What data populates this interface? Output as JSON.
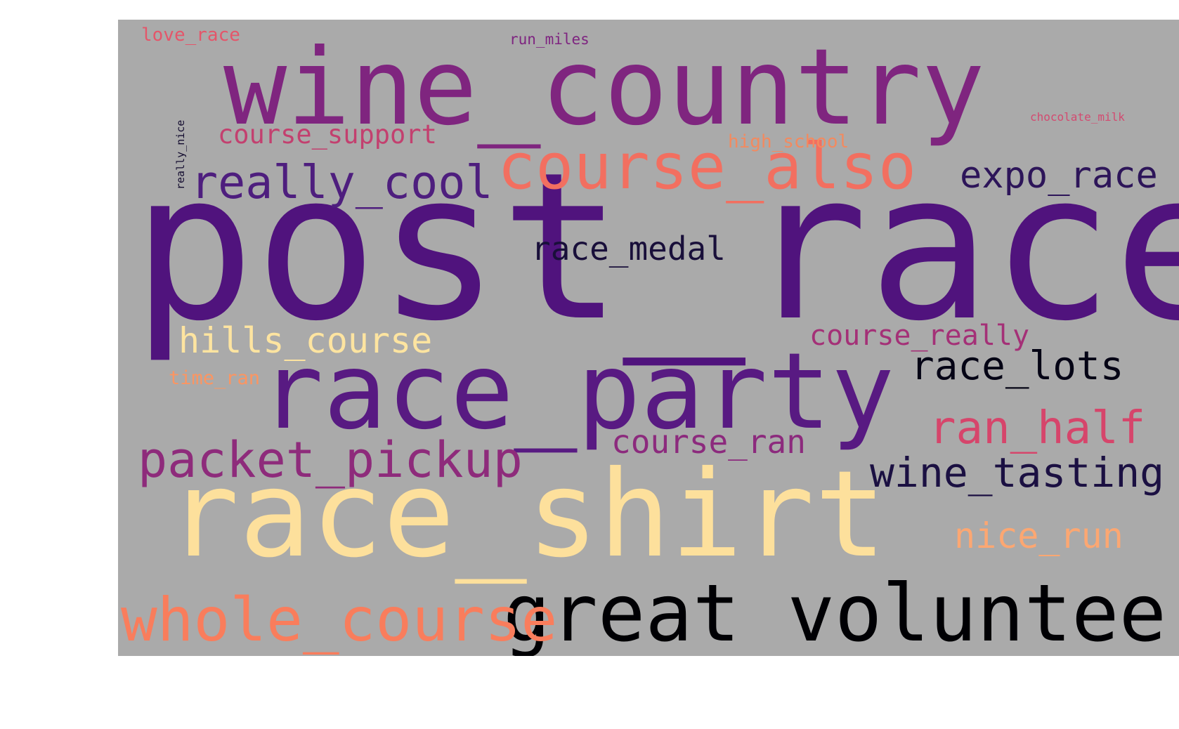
{
  "background_color": "#aaaaaa",
  "words": [
    {
      "text": "post_race",
      "color": "#50137d"
    },
    {
      "text": "wine_country",
      "color": "#7f257f"
    },
    {
      "text": "race_party",
      "color": "#581a82"
    },
    {
      "text": "race_shirt",
      "color": "#fde09c"
    },
    {
      "text": "great_volunteers",
      "color": "#000004"
    },
    {
      "text": "whole_course",
      "color": "#f97d5c"
    },
    {
      "text": "packet_pickup",
      "color": "#8e2b7b"
    },
    {
      "text": "course_also",
      "color": "#f26f60"
    },
    {
      "text": "really_cool",
      "color": "#4e1e7e"
    },
    {
      "text": "expo_race",
      "color": "#2d1559"
    },
    {
      "text": "race_medal",
      "color": "#190f3a"
    },
    {
      "text": "hills_course",
      "color": "#fde4a0"
    },
    {
      "text": "race_lots",
      "color": "#050415"
    },
    {
      "text": "course_really",
      "color": "#a43077"
    },
    {
      "text": "ran_half",
      "color": "#d6456b"
    },
    {
      "text": "course_ran",
      "color": "#8c2a7d"
    },
    {
      "text": "wine_tasting",
      "color": "#1b1042"
    },
    {
      "text": "nice_run",
      "color": "#fca772"
    },
    {
      "text": "course_support",
      "color": "#c3406f"
    },
    {
      "text": "high_school",
      "color": "#f38a5f"
    },
    {
      "text": "love_race",
      "color": "#e4566a"
    },
    {
      "text": "run_miles",
      "color": "#7e2480"
    },
    {
      "text": "chocolate_milk",
      "color": "#d34a70"
    },
    {
      "text": "time_ran",
      "color": "#fb9562"
    },
    {
      "text": "really_nice",
      "color": "#130c2f"
    }
  ]
}
